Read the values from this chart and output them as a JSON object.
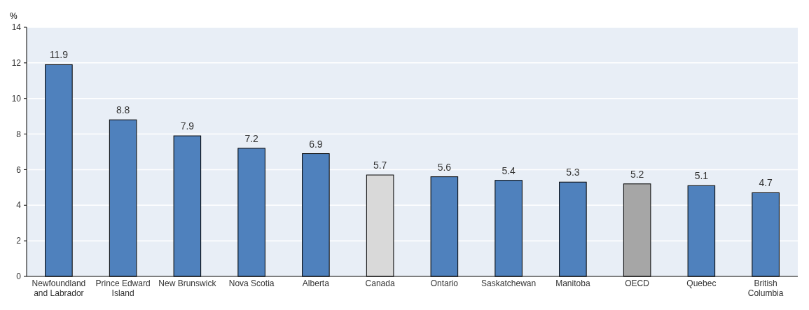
{
  "chart_data": {
    "type": "bar",
    "ylabel": "%",
    "categories": [
      "Newfoundland and Labrador",
      "Prince Edward Island",
      "New Brunswick",
      "Nova Scotia",
      "Alberta",
      "Canada",
      "Ontario",
      "Saskatchewan",
      "Manitoba",
      "OECD",
      "Quebec",
      "British Columbia"
    ],
    "values": [
      11.9,
      8.8,
      7.9,
      7.2,
      6.9,
      5.7,
      5.6,
      5.4,
      5.3,
      5.2,
      5.1,
      4.7
    ],
    "colors": [
      "#4f81bd",
      "#4f81bd",
      "#4f81bd",
      "#4f81bd",
      "#4f81bd",
      "#d9d9d9",
      "#4f81bd",
      "#4f81bd",
      "#4f81bd",
      "#a6a6a6",
      "#4f81bd",
      "#4f81bd"
    ],
    "ylim": [
      0,
      14
    ],
    "yticks": [
      0,
      2,
      4,
      6,
      8,
      10,
      12,
      14
    ],
    "grid": "y",
    "data_labels": true
  }
}
